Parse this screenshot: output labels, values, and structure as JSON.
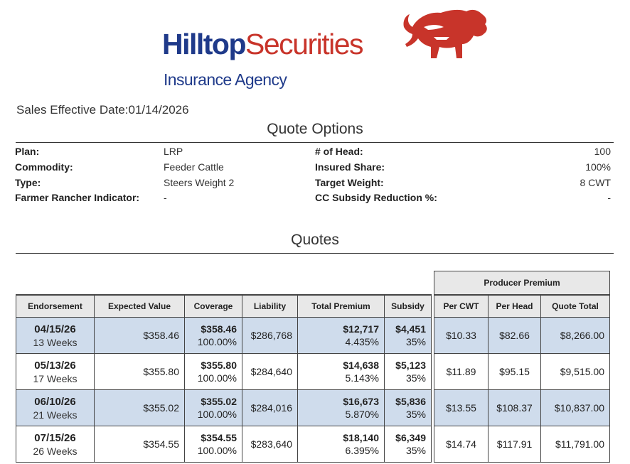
{
  "logo": {
    "brand_part1": "Hilltop",
    "brand_part2": "Securities",
    "subtitle": "Insurance Agency",
    "mark": "bison-icon",
    "colors": {
      "blue": "#1f3a8a",
      "red": "#c8342a"
    }
  },
  "sales_date": "Sales Effective Date:01/14/2026",
  "options_title": "Quote Options",
  "options": {
    "left": [
      {
        "label": "Plan:",
        "value": "LRP"
      },
      {
        "label": "Commodity:",
        "value": "Feeder Cattle"
      },
      {
        "label": "Type:",
        "value": "Steers Weight 2"
      },
      {
        "label": "Farmer Rancher Indicator:",
        "value": "-"
      }
    ],
    "right": [
      {
        "label": "# of Head:",
        "value": "100"
      },
      {
        "label": "Insured Share:",
        "value": "100%"
      },
      {
        "label": "Target Weight:",
        "value": "8 CWT"
      },
      {
        "label": "CC Subsidy Reduction %:",
        "value": "-"
      }
    ]
  },
  "quotes_title": "Quotes",
  "table": {
    "group_header": "Producer Premium",
    "columns": [
      "Endorsement",
      "Expected Value",
      "Coverage",
      "Liability",
      "Total Premium",
      "Subsidy",
      "Per CWT",
      "Per Head",
      "Quote Total"
    ],
    "shaded_color": "#cfdcec",
    "rows": [
      {
        "date": "04/15/26",
        "weeks": "13 Weeks",
        "expected": "$358.46",
        "coverage": "$358.46",
        "coverage_pct": "100.00%",
        "liability": "$286,768",
        "premium": "$12,717",
        "premium_pct": "4.435%",
        "subsidy": "$4,451",
        "subsidy_pct": "35%",
        "per_cwt": "$10.33",
        "per_head": "$82.66",
        "total": "$8,266.00"
      },
      {
        "date": "05/13/26",
        "weeks": "17 Weeks",
        "expected": "$355.80",
        "coverage": "$355.80",
        "coverage_pct": "100.00%",
        "liability": "$284,640",
        "premium": "$14,638",
        "premium_pct": "5.143%",
        "subsidy": "$5,123",
        "subsidy_pct": "35%",
        "per_cwt": "$11.89",
        "per_head": "$95.15",
        "total": "$9,515.00"
      },
      {
        "date": "06/10/26",
        "weeks": "21 Weeks",
        "expected": "$355.02",
        "coverage": "$355.02",
        "coverage_pct": "100.00%",
        "liability": "$284,016",
        "premium": "$16,673",
        "premium_pct": "5.870%",
        "subsidy": "$5,836",
        "subsidy_pct": "35%",
        "per_cwt": "$13.55",
        "per_head": "$108.37",
        "total": "$10,837.00"
      },
      {
        "date": "07/15/26",
        "weeks": "26 Weeks",
        "expected": "$354.55",
        "coverage": "$354.55",
        "coverage_pct": "100.00%",
        "liability": "$283,640",
        "premium": "$18,140",
        "premium_pct": "6.395%",
        "subsidy": "$6,349",
        "subsidy_pct": "35%",
        "per_cwt": "$14.74",
        "per_head": "$117.91",
        "total": "$11,791.00"
      }
    ]
  }
}
